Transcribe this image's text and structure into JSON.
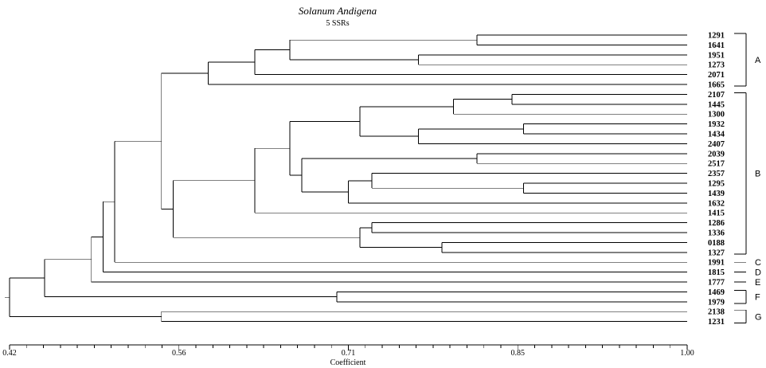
{
  "chart_data": {
    "type": "dendrogram",
    "title": "Solanum Andigena",
    "subtitle": "5 SSRs",
    "xlabel": "Coefficient",
    "xlim": [
      0.42,
      1.0
    ],
    "ticks": [
      "0.42",
      "0.56",
      "0.71",
      "0.85",
      "1.00"
    ],
    "leaves": [
      "1291",
      "1641",
      "1951",
      "1273",
      "2071",
      "1665",
      "2107",
      "1445",
      "1300",
      "1932",
      "1434",
      "2407",
      "2039",
      "2517",
      "2357",
      "1295",
      "1439",
      "1632",
      "1415",
      "1286",
      "1336",
      "0188",
      "1327",
      "1991",
      "1815",
      "1777",
      "1469",
      "1979",
      "2138",
      "1231"
    ],
    "merges": [
      {
        "id": "n1",
        "children": [
          "1291",
          "1641"
        ],
        "height": 0.82
      },
      {
        "id": "n2",
        "children": [
          "1951",
          "1273"
        ],
        "height": 0.77
      },
      {
        "id": "n3",
        "children": [
          "n1",
          "n2"
        ],
        "height": 0.66
      },
      {
        "id": "n4",
        "children": [
          "n3",
          "2071"
        ],
        "height": 0.63
      },
      {
        "id": "n5",
        "children": [
          "n4",
          "1665"
        ],
        "height": 0.59
      },
      {
        "id": "n6",
        "children": [
          "2107",
          "1445"
        ],
        "height": 0.85
      },
      {
        "id": "n7",
        "children": [
          "n6",
          "1300"
        ],
        "height": 0.8
      },
      {
        "id": "n8",
        "children": [
          "1932",
          "1434"
        ],
        "height": 0.86
      },
      {
        "id": "n9",
        "children": [
          "n8",
          "2407"
        ],
        "height": 0.77
      },
      {
        "id": "n10",
        "children": [
          "n7",
          "n9"
        ],
        "height": 0.72
      },
      {
        "id": "n11",
        "children": [
          "2039",
          "2517"
        ],
        "height": 0.82
      },
      {
        "id": "n12",
        "children": [
          "1295",
          "1439"
        ],
        "height": 0.86
      },
      {
        "id": "n13",
        "children": [
          "2357",
          "n12"
        ],
        "height": 0.73
      },
      {
        "id": "n14",
        "children": [
          "n13",
          "1632"
        ],
        "height": 0.71
      },
      {
        "id": "n15",
        "children": [
          "n11",
          "n14"
        ],
        "height": 0.67
      },
      {
        "id": "n16",
        "children": [
          "n10",
          "n15"
        ],
        "height": 0.66
      },
      {
        "id": "n17",
        "children": [
          "n16",
          "1415"
        ],
        "height": 0.63
      },
      {
        "id": "n18",
        "children": [
          "1286",
          "1336"
        ],
        "height": 0.73
      },
      {
        "id": "n19",
        "children": [
          "0188",
          "1327"
        ],
        "height": 0.79
      },
      {
        "id": "n20",
        "children": [
          "n18",
          "n19"
        ],
        "height": 0.72
      },
      {
        "id": "n21",
        "children": [
          "n17",
          "n20"
        ],
        "height": 0.56
      },
      {
        "id": "n22",
        "children": [
          "n5",
          "n21"
        ],
        "height": 0.55
      },
      {
        "id": "n23",
        "children": [
          "n22",
          "1991"
        ],
        "height": 0.51
      },
      {
        "id": "n24",
        "children": [
          "n23",
          "1815"
        ],
        "height": 0.5
      },
      {
        "id": "n25",
        "children": [
          "n24",
          "1777"
        ],
        "height": 0.49
      },
      {
        "id": "n26",
        "children": [
          "1469",
          "1979"
        ],
        "height": 0.7
      },
      {
        "id": "n27",
        "children": [
          "n25",
          "n26"
        ],
        "height": 0.45
      },
      {
        "id": "n28",
        "children": [
          "2138",
          "1231"
        ],
        "height": 0.55
      },
      {
        "id": "n29",
        "children": [
          "n27",
          "n28"
        ],
        "height": 0.42
      }
    ],
    "groups": [
      {
        "label": "A",
        "from": "1291",
        "to": "1665"
      },
      {
        "label": "B",
        "from": "2107",
        "to": "1327"
      },
      {
        "label": "C",
        "from": "1991",
        "to": "1991"
      },
      {
        "label": "D",
        "from": "1815",
        "to": "1815"
      },
      {
        "label": "E",
        "from": "1777",
        "to": "1777"
      },
      {
        "label": "F",
        "from": "1469",
        "to": "1979"
      },
      {
        "label": "G",
        "from": "2138",
        "to": "1231"
      }
    ]
  }
}
